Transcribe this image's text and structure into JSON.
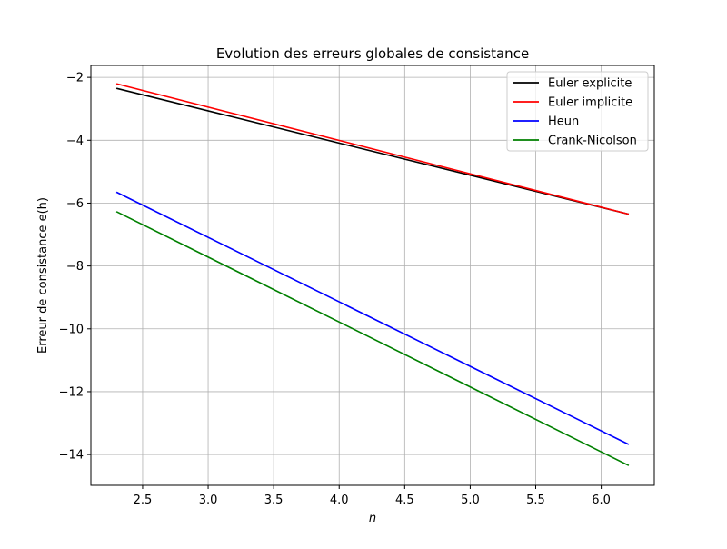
{
  "chart_data": {
    "type": "line",
    "title": "Evolution des erreurs globales de consistance",
    "xlabel": "n",
    "ylabel": "Erreur de consistance e(h)",
    "xlim": [
      2.105,
      6.405
    ],
    "ylim": [
      -14.98,
      -1.62
    ],
    "xticks": [
      2.5,
      3.0,
      3.5,
      4.0,
      4.5,
      5.0,
      5.5,
      6.0
    ],
    "xtick_labels": [
      "2.5",
      "3.0",
      "3.5",
      "4.0",
      "4.5",
      "5.0",
      "5.5",
      "6.0"
    ],
    "yticks": [
      -14,
      -12,
      -10,
      -8,
      -6,
      -4,
      -2
    ],
    "ytick_labels": [
      "−14",
      "−12",
      "−10",
      "−8",
      "−6",
      "−4",
      "−2"
    ],
    "grid": true,
    "legend": "top-right",
    "series": [
      {
        "name": "Euler explicite",
        "color": "#000000",
        "x": [
          2.3,
          6.21
        ],
        "y": [
          -2.35,
          -6.35
        ]
      },
      {
        "name": "Euler implicite",
        "color": "#ff0000",
        "x": [
          2.3,
          6.21
        ],
        "y": [
          -2.2,
          -6.35
        ]
      },
      {
        "name": "Heun",
        "color": "#0000ff",
        "x": [
          2.3,
          6.21
        ],
        "y": [
          -5.65,
          -13.68
        ]
      },
      {
        "name": "Crank-Nicolson",
        "color": "#008000",
        "x": [
          2.3,
          6.21
        ],
        "y": [
          -6.27,
          -14.35
        ]
      }
    ]
  }
}
